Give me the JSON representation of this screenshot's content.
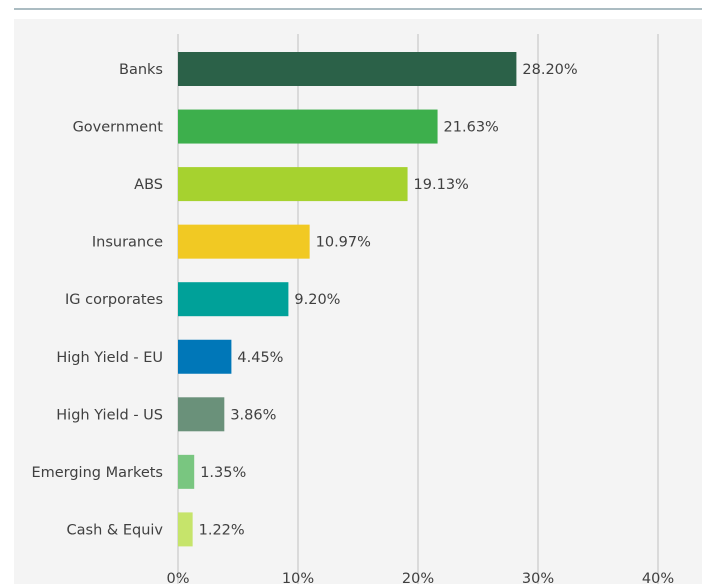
{
  "chart_data": {
    "type": "bar",
    "orientation": "horizontal",
    "categories": [
      "Banks",
      "Government",
      "ABS",
      "Insurance",
      "IG corporates",
      "High Yield - EU",
      "High Yield - US",
      "Emerging Markets",
      "Cash & Equiv"
    ],
    "values": [
      28.2,
      21.63,
      19.13,
      10.97,
      9.2,
      4.45,
      3.86,
      1.35,
      1.22
    ],
    "value_labels": [
      "28.20%",
      "21.63%",
      "19.13%",
      "10.97%",
      "9.20%",
      "4.45%",
      "3.86%",
      "1.35%",
      "1.22%"
    ],
    "bar_colors": [
      "#2b6148",
      "#3daf4c",
      "#a6d22f",
      "#f1c923",
      "#00a199",
      "#0077b8",
      "#6a917a",
      "#79c680",
      "#c6e46b"
    ],
    "xticks": [
      0,
      10,
      20,
      30,
      40
    ],
    "xtick_labels": [
      "0%",
      "10%",
      "20%",
      "30%",
      "40%"
    ],
    "xlim": [
      0,
      40
    ],
    "grid": true,
    "title": "",
    "xlabel": "",
    "ylabel": ""
  }
}
